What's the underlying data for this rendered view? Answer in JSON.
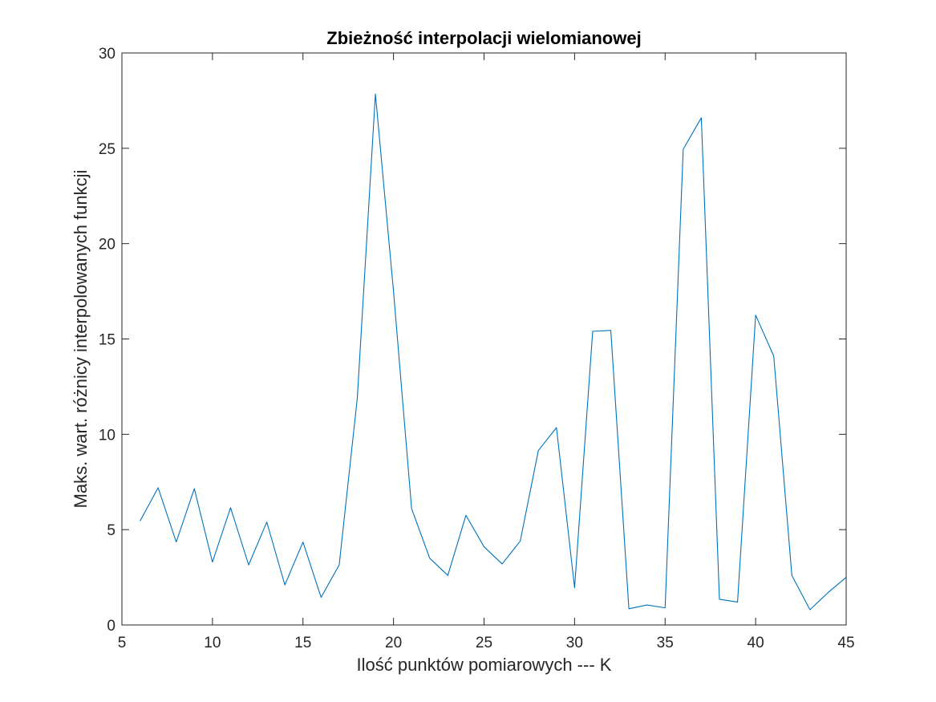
{
  "chart_data": {
    "type": "line",
    "title": "Zbieżność interpolacji wielomianowej",
    "xlabel": "Ilość punktów pomiarowych --- K",
    "ylabel": "Maks. wart. różnicy interpolowanych funkcji",
    "xlim": [
      5,
      45
    ],
    "ylim": [
      0,
      30
    ],
    "xticks": [
      5,
      10,
      15,
      20,
      25,
      30,
      35,
      40,
      45
    ],
    "yticks": [
      0,
      5,
      10,
      15,
      20,
      25,
      30
    ],
    "grid": false,
    "line_color": "#0072bd",
    "series": [
      {
        "x": [
          6,
          7,
          8,
          9,
          10,
          11,
          12,
          13,
          14,
          15,
          16,
          17,
          18,
          19,
          20,
          21,
          22,
          23,
          24,
          25,
          26,
          27,
          28,
          29,
          30,
          31,
          32,
          33,
          34,
          35,
          36,
          37,
          38,
          39,
          40,
          41,
          42,
          43,
          44,
          45
        ],
        "values": [
          5.45,
          7.2,
          4.35,
          7.15,
          3.3,
          6.15,
          3.15,
          5.4,
          2.1,
          4.35,
          1.45,
          3.15,
          11.9,
          27.85,
          17.5,
          6.1,
          3.5,
          2.6,
          5.75,
          4.1,
          3.2,
          4.4,
          9.15,
          10.35,
          1.95,
          15.4,
          15.45,
          0.85,
          1.05,
          0.9,
          24.95,
          26.6,
          1.35,
          1.2,
          16.25,
          14.1,
          2.6,
          0.8,
          1.7,
          2.5
        ]
      }
    ]
  }
}
